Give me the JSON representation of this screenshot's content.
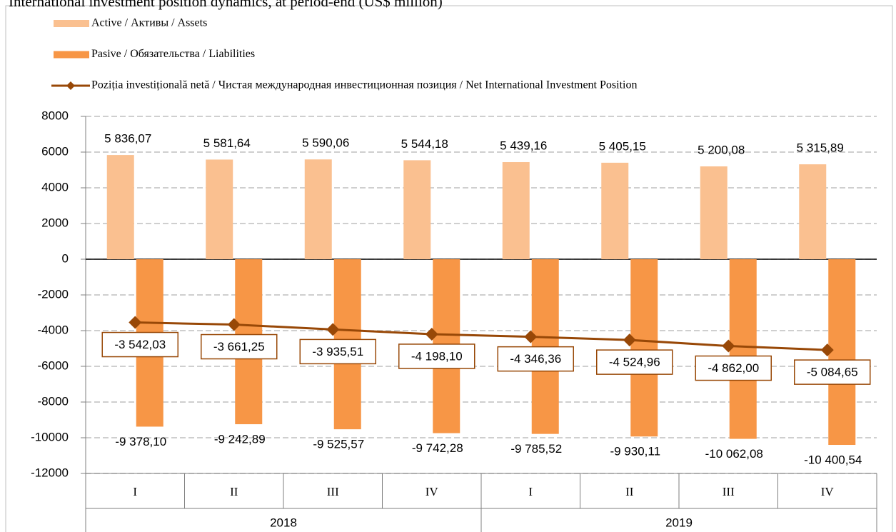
{
  "chart_data": {
    "type": "bar",
    "title": "International investment position dynamics, at period-end (US$ million)",
    "categories": [
      "I",
      "II",
      "III",
      "IV",
      "I",
      "II",
      "III",
      "IV"
    ],
    "groups": [
      "2018",
      "2019"
    ],
    "ylim": [
      -12000,
      8000
    ],
    "yticks": [
      -12000,
      -10000,
      -8000,
      -6000,
      -4000,
      -2000,
      0,
      2000,
      4000,
      6000,
      8000
    ],
    "grid": true,
    "series": [
      {
        "name": "Active / Активы / Assets",
        "color": "#fac090",
        "values": [
          5836.07,
          5581.64,
          5590.06,
          5544.18,
          5439.16,
          5405.15,
          5200.08,
          5315.89
        ],
        "value_labels": [
          "5 836,07",
          "5 581,64",
          "5 590,06",
          "5 544,18",
          "5 439,16",
          "5 405,15",
          "5 200,08",
          "5 315,89"
        ]
      },
      {
        "name": "Pasive / Обязательства / Liabilities",
        "color": "#f79646",
        "values": [
          -9378.1,
          -9242.89,
          -9525.57,
          -9742.28,
          -9785.52,
          -9930.11,
          -10062.08,
          -10400.54
        ],
        "value_labels": [
          "-9 378,10",
          "-9 242,89",
          "-9 525,57",
          "-9 742,28",
          "-9 785,52",
          "-9 930,11",
          "-10 062,08",
          "-10 400,54"
        ]
      },
      {
        "name": "Poziția investițională netă / Чистая международная инвестиционная позиция / Net International Investment Position",
        "color": "#984807",
        "type": "line",
        "values": [
          -3542.03,
          -3661.25,
          -3935.51,
          -4198.1,
          -4346.36,
          -4524.96,
          -4862.0,
          -5084.65
        ],
        "value_labels": [
          "-3 542,03",
          "-3 661,25",
          "-3 935,51",
          "-4 198,10",
          "-4 346,36",
          "-4 524,96",
          "-4 862,00",
          "-5 084,65"
        ]
      }
    ]
  }
}
